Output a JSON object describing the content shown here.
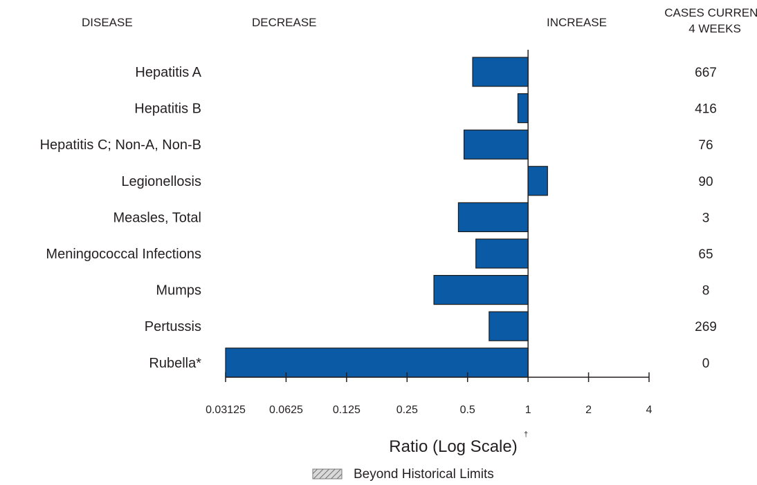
{
  "headers": {
    "disease": "DISEASE",
    "decrease": "DECREASE",
    "increase": "INCREASE",
    "cases_line1": "CASES CURRENT",
    "cases_line2": "4 WEEKS"
  },
  "colors": {
    "bar": "#0a5aa6",
    "bar_stroke": "#1a1a1a",
    "axis": "#231f20"
  },
  "chart_data": {
    "type": "bar",
    "orientation": "horizontal",
    "xscale": "log2",
    "xlim": [
      0.03125,
      4
    ],
    "baseline": 1,
    "xlabel": "Ratio (Log Scale)",
    "xlabel_mark": "†",
    "x_ticks": [
      0.03125,
      0.0625,
      0.125,
      0.25,
      0.5,
      1,
      2,
      4
    ],
    "x_tick_labels": [
      "0.03125",
      "0.0625",
      "0.125",
      "0.25",
      "0.5",
      "1",
      "2",
      "4"
    ],
    "categories": [
      "Hepatitis A",
      "Hepatitis B",
      "Hepatitis C; Non-A, Non-B",
      "Legionellosis",
      "Measles, Total",
      "Meningococcal Infections",
      "Mumps",
      "Pertussis",
      "Rubella*"
    ],
    "values": [
      0.53,
      0.89,
      0.48,
      1.25,
      0.45,
      0.55,
      0.34,
      0.64,
      0.03125
    ],
    "cases": [
      "667",
      "416",
      "76",
      "90",
      "3",
      "65",
      "8",
      "269",
      "0"
    ],
    "legend": [
      {
        "label": "Beyond Historical Limits",
        "pattern": "hatched"
      }
    ],
    "grid": false
  }
}
